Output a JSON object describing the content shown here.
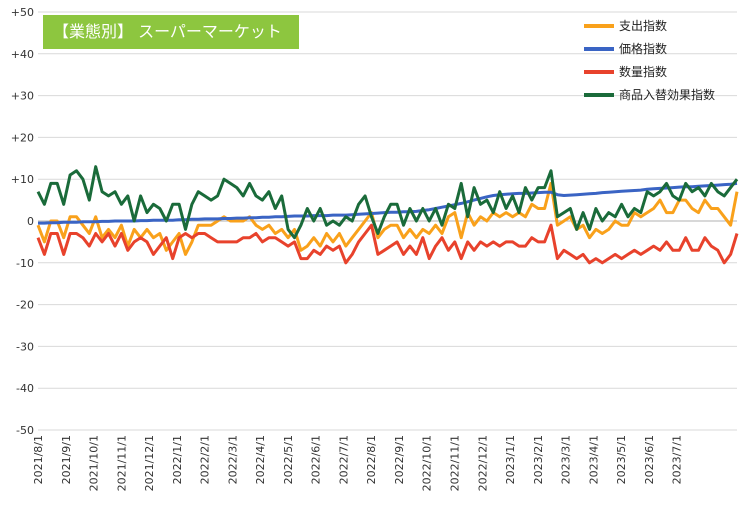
{
  "chart_data": {
    "type": "line",
    "title": "【業態別】 スーパーマーケット",
    "ylim": [
      -50,
      50
    ],
    "yticks": [
      "+50",
      "+40",
      "+30",
      "+20",
      "+10",
      "0",
      "-10",
      "-20",
      "-30",
      "-40",
      "-50"
    ],
    "ytick_values": [
      50,
      40,
      30,
      20,
      10,
      0,
      -10,
      -20,
      -30,
      -40,
      -50
    ],
    "xticks": [
      "2021/8/1",
      "2021/9/1",
      "2021/10/1",
      "2021/11/1",
      "2021/12/1",
      "2022/1/1",
      "2022/2/1",
      "2022/3/1",
      "2022/4/1",
      "2022/5/1",
      "2022/6/1",
      "2022/7/1",
      "2022/8/1",
      "2022/9/1",
      "2022/10/1",
      "2022/11/1",
      "2022/12/1",
      "2023/1/1",
      "2023/2/1",
      "2023/3/1",
      "2023/4/1",
      "2023/5/1",
      "2023/6/1",
      "2023/7/1"
    ],
    "weeks_per_month": 4.33,
    "grid": true,
    "legend_position": "top-right",
    "series": [
      {
        "name": "支出指数",
        "color": "#f9a11b",
        "values": [
          -1,
          -5,
          0,
          0,
          -4,
          1,
          1,
          -1,
          -3,
          1,
          -4,
          -2,
          -4,
          -1,
          -6,
          -2,
          -4,
          -2,
          -4,
          -3,
          -7,
          -5,
          -3,
          -8,
          -5,
          -1,
          -1,
          -1,
          0,
          1,
          0,
          0,
          0,
          1,
          -1,
          -2,
          -1,
          -3,
          -2,
          -4,
          -2,
          -7,
          -6,
          -4,
          -6,
          -3,
          -5,
          -3,
          -6,
          -4,
          -2,
          0,
          2,
          -4,
          -2,
          -1,
          -1,
          -4,
          -2,
          -4,
          -2,
          -3,
          -1,
          -3,
          1,
          2,
          -4,
          2,
          -1,
          1,
          0,
          2,
          1,
          2,
          1,
          2,
          1,
          4,
          3,
          3,
          9,
          -1,
          0,
          1,
          -2,
          -1,
          -4,
          -2,
          -3,
          -2,
          0,
          -1,
          -1,
          2,
          1,
          2,
          3,
          5,
          2,
          2,
          5,
          5,
          3,
          2,
          5,
          3,
          3,
          1,
          -1,
          7
        ]
      },
      {
        "name": "価格指数",
        "color": "#3a64c4",
        "values": [
          -0.5,
          -0.5,
          -0.4,
          -0.4,
          -0.3,
          -0.3,
          -0.3,
          -0.2,
          -0.2,
          -0.2,
          -0.1,
          -0.1,
          0,
          0,
          0,
          0,
          0.1,
          0.1,
          0.2,
          0.2,
          0.2,
          0.2,
          0.3,
          0.3,
          0.4,
          0.4,
          0.5,
          0.5,
          0.5,
          0.6,
          0.6,
          0.7,
          0.7,
          0.8,
          0.8,
          0.9,
          0.9,
          1,
          1,
          1.1,
          1.2,
          1.2,
          1.2,
          1.3,
          1.3,
          1.3,
          1.4,
          1.4,
          1.4,
          1.5,
          1.6,
          1.7,
          1.8,
          1.9,
          2,
          2.1,
          2.1,
          2.2,
          2.2,
          2.3,
          2.5,
          2.7,
          3,
          3.3,
          3.6,
          3.9,
          4.2,
          4.6,
          5,
          5.4,
          5.8,
          6.1,
          6.3,
          6.4,
          6.5,
          6.6,
          6.6,
          6.7,
          6.8,
          6.9,
          6.9,
          6.3,
          6.1,
          6.2,
          6.3,
          6.4,
          6.5,
          6.6,
          6.8,
          6.9,
          7,
          7.1,
          7.2,
          7.3,
          7.4,
          7.6,
          7.7,
          7.8,
          7.9,
          8,
          8.1,
          8.2,
          8.2,
          8.3,
          8.4,
          8.5,
          8.6,
          8.7,
          8.8,
          9
        ]
      },
      {
        "name": "数量指数",
        "color": "#e8422c",
        "values": [
          -4,
          -8,
          -3,
          -3,
          -8,
          -3,
          -3,
          -4,
          -6,
          -3,
          -5,
          -3,
          -6,
          -3,
          -7,
          -5,
          -4,
          -5,
          -8,
          -6,
          -4,
          -9,
          -4,
          -3,
          -4,
          -3,
          -3,
          -4,
          -5,
          -5,
          -5,
          -5,
          -4,
          -4,
          -3,
          -5,
          -4,
          -4,
          -5,
          -6,
          -5,
          -9,
          -9,
          -7,
          -8,
          -6,
          -7,
          -6,
          -10,
          -8,
          -5,
          -3,
          -1,
          -8,
          -7,
          -6,
          -5,
          -8,
          -6,
          -8,
          -4,
          -9,
          -6,
          -4,
          -7,
          -5,
          -9,
          -5,
          -7,
          -5,
          -6,
          -5,
          -6,
          -5,
          -5,
          -6,
          -6,
          -4,
          -5,
          -5,
          -1,
          -9,
          -7,
          -8,
          -9,
          -8,
          -10,
          -9,
          -10,
          -9,
          -8,
          -9,
          -8,
          -7,
          -8,
          -7,
          -6,
          -7,
          -5,
          -7,
          -7,
          -4,
          -7,
          -7,
          -4,
          -6,
          -7,
          -10,
          -8,
          -3
        ]
      },
      {
        "name": "商品入替効果指数",
        "color": "#1a6b3a",
        "values": [
          7,
          4,
          9,
          9,
          4,
          11,
          12,
          10,
          5,
          13,
          7,
          6,
          7,
          4,
          6,
          0,
          6,
          2,
          4,
          3,
          0,
          4,
          4,
          -2,
          4,
          7,
          6,
          5,
          6,
          10,
          9,
          8,
          6,
          9,
          6,
          5,
          7,
          3,
          6,
          -2,
          -4,
          -1,
          3,
          0,
          3,
          -1,
          0,
          -1,
          1,
          0,
          4,
          6,
          1,
          -3,
          1,
          4,
          4,
          -1,
          3,
          0,
          3,
          0,
          3,
          -1,
          4,
          3,
          9,
          1,
          8,
          4,
          5,
          2,
          7,
          3,
          6,
          2,
          8,
          5,
          8,
          8,
          12,
          1,
          2,
          3,
          -2,
          2,
          -2,
          3,
          0,
          2,
          1,
          4,
          1,
          3,
          2,
          7,
          6,
          7,
          9,
          6,
          5,
          9,
          7,
          8,
          6,
          9,
          7,
          6,
          8,
          10
        ]
      }
    ]
  }
}
